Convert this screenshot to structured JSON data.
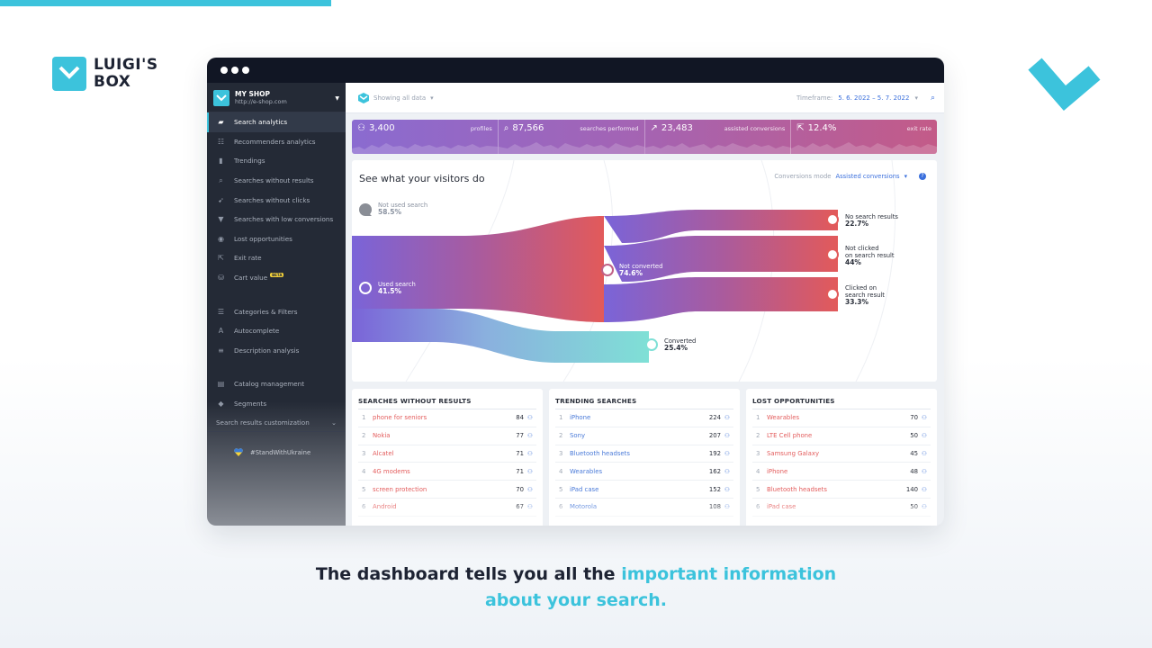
{
  "brand": {
    "name_line1": "LUIGI'S",
    "name_line2": "BOX",
    "accent_color": "#3cc3dc"
  },
  "sidebar": {
    "shop_name": "MY SHOP",
    "shop_url": "http://e-shop.com",
    "items": [
      {
        "label": "Search analytics",
        "icon": "chat-icon",
        "active": true
      },
      {
        "label": "Recommenders analytics",
        "icon": "list-icon"
      },
      {
        "label": "Trendings",
        "icon": "bar-chart-icon"
      },
      {
        "label": "Searches without results",
        "icon": "search-x-icon"
      },
      {
        "label": "Searches without clicks",
        "icon": "pointer-icon"
      },
      {
        "label": "Searches with low conversions",
        "icon": "thumb-down-icon"
      },
      {
        "label": "Lost opportunities",
        "icon": "money-bag-icon"
      },
      {
        "label": "Exit rate",
        "icon": "exit-icon"
      },
      {
        "label": "Cart value",
        "icon": "basket-icon",
        "badge": "BETA"
      }
    ],
    "items2": [
      {
        "label": "Categories & Filters",
        "icon": "sliders-icon"
      },
      {
        "label": "Autocomplete",
        "icon": "text-cursor-icon"
      },
      {
        "label": "Description analysis",
        "icon": "paragraph-icon"
      }
    ],
    "items3": [
      {
        "label": "Catalog management",
        "icon": "book-icon"
      },
      {
        "label": "Segments",
        "icon": "cube-icon"
      }
    ],
    "customization": "Search results customization",
    "ukraine": "#StandWithUkraine"
  },
  "topbar": {
    "scope": "Showing all data",
    "timeframe_label": "Timeframe:",
    "timeframe_value": "5. 6. 2022 – 5. 7. 2022"
  },
  "stats": [
    {
      "value": "3,400",
      "label": "profiles",
      "icon": "user-icon"
    },
    {
      "value": "87,566",
      "label": "searches performed",
      "icon": "search-icon"
    },
    {
      "value": "23,483",
      "label": "assisted conversions",
      "icon": "trend-icon"
    },
    {
      "value": "12.4%",
      "label": "exit rate",
      "icon": "exit-icon"
    }
  ],
  "flow": {
    "title": "See what your visitors do",
    "mode_label": "Conversions mode",
    "mode_value": "Assisted conversions",
    "nodes": {
      "not_used": {
        "label": "Not used search",
        "value": "58.5%"
      },
      "used": {
        "label": "Used search",
        "value": "41.5%"
      },
      "not_converted": {
        "label": "Not converted",
        "value": "74.6%"
      },
      "converted": {
        "label": "Converted",
        "value": "25.4%"
      },
      "no_results": {
        "label": "No search results",
        "value": "22.7%"
      },
      "not_clicked": {
        "label1": "Not clicked",
        "label2": "on search result",
        "value": "44%"
      },
      "clicked": {
        "label1": "Clicked on",
        "label2": "search result",
        "value": "33.3%"
      }
    }
  },
  "lists": [
    {
      "title": "SEARCHES WITHOUT RESULTS",
      "style": "red",
      "rows": [
        {
          "rank": "1",
          "term": "phone for seniors",
          "count": "84"
        },
        {
          "rank": "2",
          "term": "Nokia",
          "count": "77"
        },
        {
          "rank": "3",
          "term": "Alcatel",
          "count": "71"
        },
        {
          "rank": "4",
          "term": "4G modems",
          "count": "71"
        },
        {
          "rank": "5",
          "term": "screen protection",
          "count": "70"
        },
        {
          "rank": "6",
          "term": "Android",
          "count": "67"
        }
      ]
    },
    {
      "title": "TRENDING SEARCHES",
      "style": "blue",
      "rows": [
        {
          "rank": "1",
          "term": "iPhone",
          "count": "224"
        },
        {
          "rank": "2",
          "term": "Sony",
          "count": "207"
        },
        {
          "rank": "3",
          "term": "Bluetooth headsets",
          "count": "192"
        },
        {
          "rank": "4",
          "term": "Wearables",
          "count": "162"
        },
        {
          "rank": "5",
          "term": "iPad case",
          "count": "152"
        },
        {
          "rank": "6",
          "term": "Motorola",
          "count": "108"
        }
      ]
    },
    {
      "title": "LOST OPPORTUNITIES",
      "style": "red",
      "rows": [
        {
          "rank": "1",
          "term": "Wearables",
          "count": "70"
        },
        {
          "rank": "2",
          "term": "LTE Cell phone",
          "count": "50"
        },
        {
          "rank": "3",
          "term": "Samsung Galaxy",
          "count": "45"
        },
        {
          "rank": "4",
          "term": "iPhone",
          "count": "48"
        },
        {
          "rank": "5",
          "term": "Bluetooth headsets",
          "count": "140"
        },
        {
          "rank": "6",
          "term": "iPad case",
          "count": "50"
        }
      ]
    }
  ],
  "tagline": {
    "part1": "The dashboard tells you all the ",
    "part2": "important information",
    "part3": "about your search."
  }
}
